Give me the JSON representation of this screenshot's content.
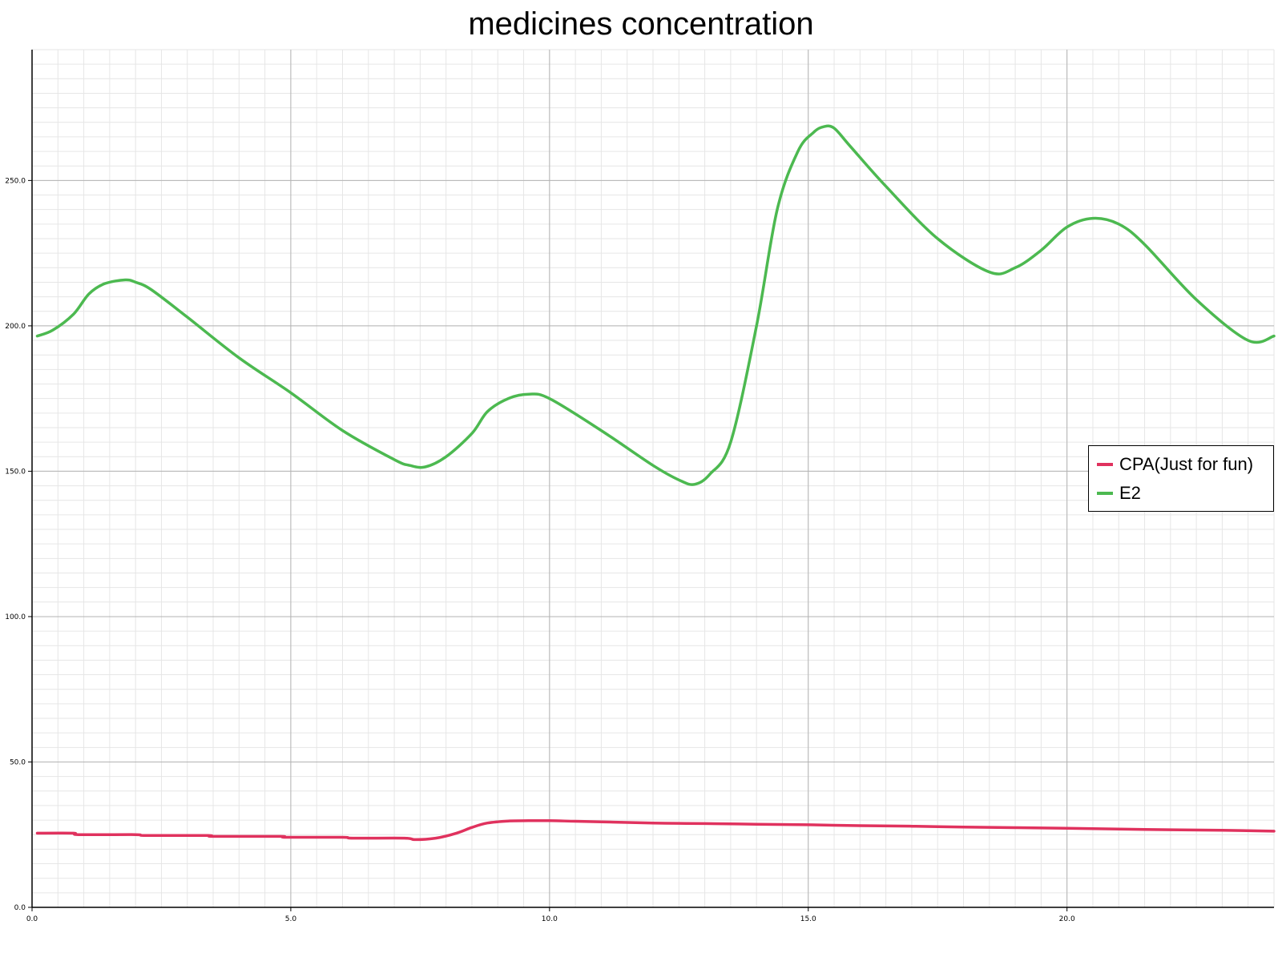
{
  "chart_data": {
    "type": "line",
    "title": "medicines concentration",
    "xlabel": "",
    "ylabel": "",
    "xlim": [
      0,
      24
    ],
    "ylim": [
      0,
      295
    ],
    "x_ticks": [
      "0.0",
      "5.0",
      "10.0",
      "15.0",
      "20.0"
    ],
    "y_ticks": [
      "0.0",
      "50.0",
      "100.0",
      "150.0",
      "200.0",
      "250.0"
    ],
    "grid": true,
    "legend_position": "right",
    "series": [
      {
        "name": "CPA(Just for fun)",
        "color": "#e0325e",
        "x": [
          0.1,
          0.8,
          0.9,
          2.0,
          2.2,
          3.4,
          3.5,
          4.8,
          4.9,
          6.0,
          6.2,
          7.2,
          7.4,
          7.8,
          8.2,
          8.5,
          8.8,
          9.2,
          9.6,
          10.0,
          10.5,
          11.0,
          11.5,
          12.0,
          12.5,
          13.0,
          14.0,
          15.0,
          16.0,
          17.0,
          18.0,
          19.0,
          20.0,
          21.0,
          22.0,
          23.0,
          24.0
        ],
        "y": [
          25.5,
          25.5,
          25,
          25,
          24.7,
          24.7,
          24.4,
          24.4,
          24.1,
          24.1,
          23.8,
          23.8,
          23.3,
          23.8,
          25.5,
          27.5,
          29,
          29.7,
          29.8,
          29.8,
          29.6,
          29.4,
          29.2,
          29,
          28.9,
          28.8,
          28.6,
          28.4,
          28.1,
          27.9,
          27.6,
          27.4,
          27.2,
          26.9,
          26.7,
          26.5,
          26.2
        ]
      },
      {
        "name": "E2",
        "color": "#4cb950",
        "x": [
          0.1,
          0.4,
          0.8,
          1.1,
          1.4,
          1.8,
          2.0,
          2.3,
          3.0,
          4.0,
          5.0,
          6.0,
          7.0,
          7.3,
          7.6,
          8.0,
          8.5,
          8.8,
          9.2,
          9.6,
          10.0,
          11.0,
          12.0,
          12.5,
          12.8,
          13.1,
          13.5,
          14.0,
          14.4,
          14.8,
          15.1,
          15.3,
          15.5,
          15.8,
          16.5,
          17.5,
          18.5,
          19.0,
          19.5,
          20.0,
          20.5,
          21.0,
          21.5,
          22.5,
          23.5,
          24.0
        ],
        "y": [
          196.5,
          198.5,
          204,
          211,
          214.5,
          215.8,
          215,
          212.5,
          203,
          189,
          177,
          164,
          154,
          152,
          151.5,
          155,
          163,
          170.5,
          175,
          176.5,
          175,
          164,
          152,
          147,
          145.5,
          149,
          160,
          200,
          240,
          260,
          266.5,
          268.5,
          268,
          262,
          248,
          230,
          218.5,
          220,
          226,
          234,
          237,
          235,
          228,
          209,
          195,
          196.5
        ]
      }
    ]
  }
}
